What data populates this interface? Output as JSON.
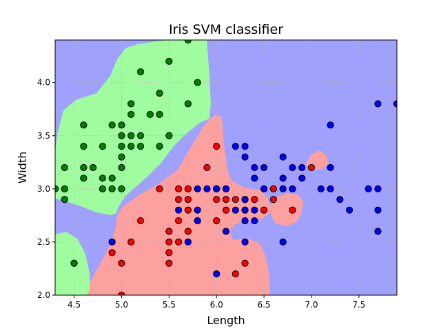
{
  "chart_data": {
    "type": "scatter",
    "title": "Iris SVM classifier",
    "xlabel": "Length",
    "ylabel": "Width",
    "xlim": [
      4.3,
      7.9
    ],
    "ylim": [
      2.0,
      4.4
    ],
    "xticks": [
      "4.5",
      "5.0",
      "5.5",
      "6.0",
      "6.5",
      "7.0",
      "7.5"
    ],
    "yticks": [
      "2.0",
      "2.5",
      "3.0",
      "3.5",
      "4.0"
    ],
    "grid": true,
    "colors": {
      "green_region": "#9ffd9f",
      "red_region": "#fda0a0",
      "blue_region": "#a0a0fd",
      "green_point": "#008000",
      "red_point": "#ff0000",
      "blue_point": "#0000ff"
    },
    "series": [
      {
        "color": "green",
        "points": [
          [
            5.7,
            4.4
          ],
          [
            5.5,
            4.2
          ],
          [
            5.2,
            4.1
          ],
          [
            5.8,
            4.0
          ],
          [
            5.4,
            3.9
          ],
          [
            5.1,
            3.8
          ],
          [
            5.7,
            3.8
          ],
          [
            5.1,
            3.7
          ],
          [
            5.3,
            3.7
          ],
          [
            5.4,
            3.7
          ],
          [
            4.6,
            3.6
          ],
          [
            4.9,
            3.6
          ],
          [
            5.0,
            3.6
          ],
          [
            5.0,
            3.5
          ],
          [
            5.1,
            3.5
          ],
          [
            5.2,
            3.5
          ],
          [
            5.5,
            3.5
          ],
          [
            4.6,
            3.4
          ],
          [
            4.8,
            3.4
          ],
          [
            5.0,
            3.4
          ],
          [
            5.1,
            3.4
          ],
          [
            5.2,
            3.4
          ],
          [
            5.4,
            3.4
          ],
          [
            4.9,
            3.1
          ],
          [
            4.8,
            3.1
          ],
          [
            4.6,
            3.1
          ],
          [
            4.9,
            3.0
          ],
          [
            4.4,
            3.2
          ],
          [
            4.6,
            3.2
          ],
          [
            4.7,
            3.2
          ],
          [
            5.0,
            3.2
          ],
          [
            4.3,
            3.0
          ],
          [
            4.4,
            3.0
          ],
          [
            4.8,
            3.0
          ],
          [
            5.0,
            3.0
          ],
          [
            4.4,
            2.9
          ],
          [
            4.5,
            2.3
          ],
          [
            5.0,
            3.3
          ]
        ]
      },
      {
        "color": "red",
        "points": [
          [
            6.0,
            3.4
          ],
          [
            5.9,
            3.2
          ],
          [
            5.4,
            3.0
          ],
          [
            5.6,
            3.0
          ],
          [
            5.7,
            3.0
          ],
          [
            6.0,
            3.0
          ],
          [
            6.1,
            3.0
          ],
          [
            6.6,
            3.0
          ],
          [
            5.6,
            2.9
          ],
          [
            5.7,
            2.9
          ],
          [
            6.0,
            2.9
          ],
          [
            6.1,
            2.9
          ],
          [
            6.2,
            2.9
          ],
          [
            6.3,
            2.9
          ],
          [
            6.4,
            2.9
          ],
          [
            6.6,
            2.9
          ],
          [
            5.7,
            2.8
          ],
          [
            6.1,
            2.8
          ],
          [
            6.3,
            2.8
          ],
          [
            6.5,
            2.8
          ],
          [
            6.8,
            2.8
          ],
          [
            5.2,
            2.7
          ],
          [
            5.6,
            2.7
          ],
          [
            5.8,
            2.7
          ],
          [
            6.0,
            2.7
          ],
          [
            5.5,
            2.6
          ],
          [
            5.7,
            2.6
          ],
          [
            5.5,
            2.5
          ],
          [
            5.6,
            2.5
          ],
          [
            5.1,
            2.5
          ],
          [
            5.5,
            2.4
          ],
          [
            4.9,
            2.4
          ],
          [
            5.0,
            2.3
          ],
          [
            5.5,
            2.3
          ],
          [
            6.3,
            2.3
          ],
          [
            6.0,
            2.2
          ],
          [
            6.2,
            2.2
          ],
          [
            5.0,
            2.0
          ],
          [
            7.0,
            3.2
          ]
        ]
      },
      {
        "color": "blue",
        "points": [
          [
            7.9,
            3.8
          ],
          [
            7.7,
            3.8
          ],
          [
            7.2,
            3.6
          ],
          [
            6.2,
            3.4
          ],
          [
            6.3,
            3.4
          ],
          [
            6.3,
            3.3
          ],
          [
            6.7,
            3.3
          ],
          [
            6.4,
            3.2
          ],
          [
            6.5,
            3.2
          ],
          [
            6.8,
            3.2
          ],
          [
            6.9,
            3.2
          ],
          [
            7.2,
            3.2
          ],
          [
            6.4,
            3.1
          ],
          [
            6.7,
            3.1
          ],
          [
            6.9,
            3.1
          ],
          [
            5.8,
            3.0
          ],
          [
            5.9,
            3.0
          ],
          [
            6.0,
            3.0
          ],
          [
            6.1,
            3.0
          ],
          [
            6.5,
            3.0
          ],
          [
            6.7,
            3.0
          ],
          [
            6.8,
            3.0
          ],
          [
            7.1,
            3.0
          ],
          [
            7.2,
            3.0
          ],
          [
            7.6,
            3.0
          ],
          [
            7.7,
            3.0
          ],
          [
            7.3,
            2.9
          ],
          [
            6.3,
            2.9
          ],
          [
            5.6,
            2.8
          ],
          [
            5.8,
            2.8
          ],
          [
            6.2,
            2.8
          ],
          [
            6.3,
            2.8
          ],
          [
            6.4,
            2.8
          ],
          [
            7.4,
            2.8
          ],
          [
            7.7,
            2.8
          ],
          [
            5.8,
            2.7
          ],
          [
            6.3,
            2.7
          ],
          [
            6.4,
            2.7
          ],
          [
            6.1,
            2.6
          ],
          [
            7.7,
            2.6
          ],
          [
            4.9,
            2.5
          ],
          [
            5.7,
            2.5
          ],
          [
            6.3,
            2.5
          ],
          [
            6.7,
            2.5
          ],
          [
            6.0,
            2.2
          ]
        ]
      }
    ]
  }
}
